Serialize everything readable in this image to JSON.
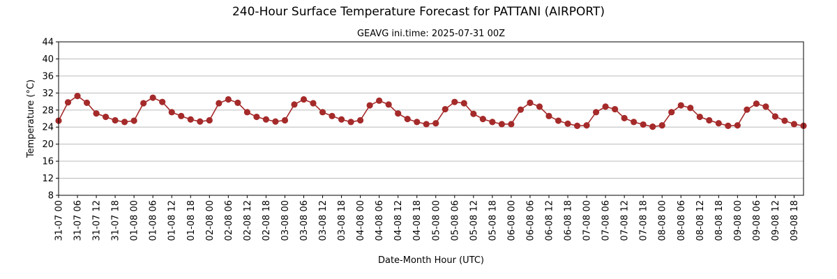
{
  "chart_data": {
    "type": "line",
    "title": "240-Hour Surface Temperature Forecast for PATTANI (AIRPORT)",
    "subtitle": "GEAVG ini.time: 2025-07-31 00Z",
    "xlabel": "Date-Month Hour (UTC)",
    "ylabel": "Temperature (°C)",
    "ylim": [
      8,
      44
    ],
    "yticks": [
      8,
      12,
      16,
      20,
      24,
      28,
      32,
      36,
      40,
      44
    ],
    "grid": "horizontal",
    "line_color": "#a52a2a",
    "x": [
      "31-07 00",
      "31-07 03",
      "31-07 06",
      "31-07 09",
      "31-07 12",
      "31-07 15",
      "31-07 18",
      "31-07 21",
      "01-08 00",
      "01-08 03",
      "01-08 06",
      "01-08 09",
      "01-08 12",
      "01-08 15",
      "01-08 18",
      "01-08 21",
      "02-08 00",
      "02-08 03",
      "02-08 06",
      "02-08 09",
      "02-08 12",
      "02-08 15",
      "02-08 18",
      "02-08 21",
      "03-08 00",
      "03-08 03",
      "03-08 06",
      "03-08 09",
      "03-08 12",
      "03-08 15",
      "03-08 18",
      "03-08 21",
      "04-08 00",
      "04-08 03",
      "04-08 06",
      "04-08 09",
      "04-08 12",
      "04-08 15",
      "04-08 18",
      "04-08 21",
      "05-08 00",
      "05-08 03",
      "05-08 06",
      "05-08 09",
      "05-08 12",
      "05-08 15",
      "05-08 18",
      "05-08 21",
      "06-08 00",
      "06-08 03",
      "06-08 06",
      "06-08 09",
      "06-08 12",
      "06-08 15",
      "06-08 18",
      "06-08 21",
      "07-08 00",
      "07-08 03",
      "07-08 06",
      "07-08 09",
      "07-08 12",
      "07-08 15",
      "07-08 18",
      "07-08 21",
      "08-08 00",
      "08-08 03",
      "08-08 06",
      "08-08 09",
      "08-08 12",
      "08-08 15",
      "08-08 18",
      "08-08 21",
      "09-08 00",
      "09-08 03",
      "09-08 06",
      "09-08 09",
      "09-08 12",
      "09-08 15",
      "09-08 18",
      "09-08 21"
    ],
    "xtick_labels": [
      "31-07 00",
      "31-07 06",
      "31-07 12",
      "31-07 18",
      "01-08 00",
      "01-08 06",
      "01-08 12",
      "01-08 18",
      "02-08 00",
      "02-08 06",
      "02-08 12",
      "02-08 18",
      "03-08 00",
      "03-08 06",
      "03-08 12",
      "03-08 18",
      "04-08 00",
      "04-08 06",
      "04-08 12",
      "04-08 18",
      "05-08 00",
      "05-08 06",
      "05-08 12",
      "05-08 18",
      "06-08 00",
      "06-08 06",
      "06-08 12",
      "06-08 18",
      "07-08 00",
      "07-08 06",
      "07-08 12",
      "07-08 18",
      "08-08 00",
      "08-08 06",
      "08-08 12",
      "08-08 18",
      "09-08 00",
      "09-08 06",
      "09-08 12",
      "09-08 18"
    ],
    "values": [
      25.5,
      29.8,
      31.3,
      29.7,
      27.2,
      26.4,
      25.6,
      25.2,
      25.5,
      29.6,
      30.9,
      29.9,
      27.5,
      26.6,
      25.8,
      25.3,
      25.6,
      29.6,
      30.5,
      29.7,
      27.5,
      26.4,
      25.8,
      25.3,
      25.6,
      29.3,
      30.5,
      29.6,
      27.5,
      26.6,
      25.8,
      25.2,
      25.6,
      29.1,
      30.2,
      29.3,
      27.2,
      25.9,
      25.2,
      24.7,
      24.9,
      28.2,
      29.9,
      29.6,
      27.1,
      25.9,
      25.2,
      24.7,
      24.7,
      28.1,
      29.7,
      28.8,
      26.6,
      25.5,
      24.8,
      24.3,
      24.4,
      27.5,
      28.8,
      28.2,
      26.1,
      25.2,
      24.6,
      24.1,
      24.4,
      27.5,
      29.1,
      28.5,
      26.4,
      25.6,
      24.9,
      24.3,
      24.4,
      28.1,
      29.5,
      28.8,
      26.5,
      25.5,
      24.7,
      24.3
    ]
  }
}
